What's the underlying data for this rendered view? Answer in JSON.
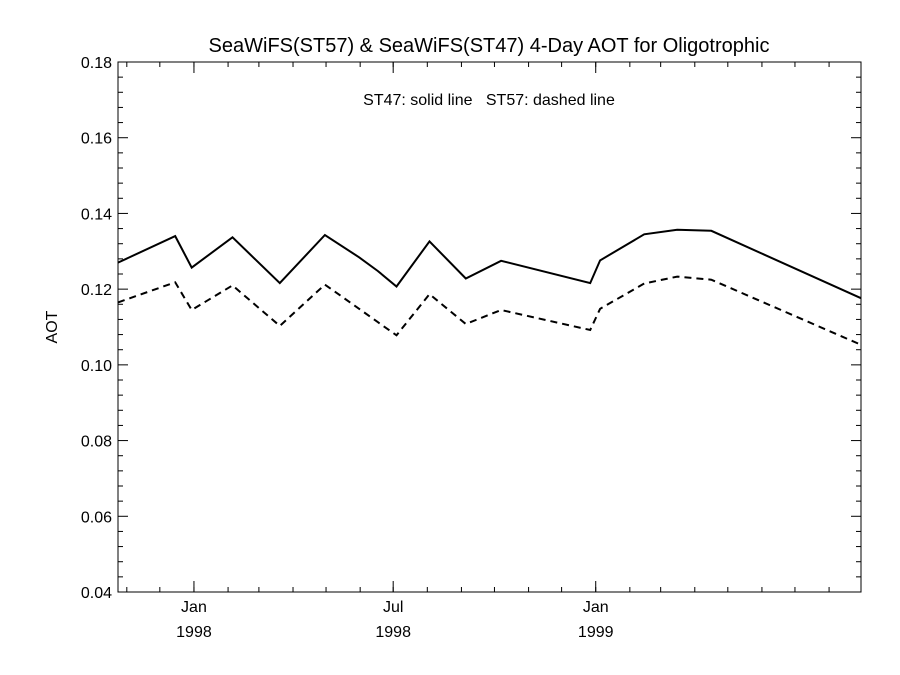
{
  "chart_data": {
    "type": "line",
    "title": "SeaWiFS(ST57) & SeaWiFS(ST47) 4-Day AOT for Oligotrophic",
    "annotation": "ST47: solid line   ST57: dashed line",
    "xlabel": "",
    "ylabel": "AOT",
    "xlim": [
      "1997-10-24",
      "1999-08-30"
    ],
    "ylim": [
      0.04,
      0.18
    ],
    "yticks": [
      0.04,
      0.06,
      0.08,
      0.1,
      0.12,
      0.14,
      0.16,
      0.18
    ],
    "ytick_labels": [
      "0.04",
      "0.06",
      "0.08",
      "0.10",
      "0.12",
      "0.14",
      "0.16",
      "0.18"
    ],
    "xticks": [
      {
        "date": "1998-01-01",
        "line1": "Jan",
        "line2": "1998"
      },
      {
        "date": "1998-07-01",
        "line1": "Jul",
        "line2": "1998"
      },
      {
        "date": "1999-01-01",
        "line1": "Jan",
        "line2": "1999"
      }
    ],
    "grid": false,
    "series": [
      {
        "name": "ST47",
        "style": "solid",
        "color": "#000000",
        "x": [
          "1997-10-24",
          "1997-12-15",
          "1997-12-30",
          "1998-02-05",
          "1998-03-20",
          "1998-04-30",
          "1998-05-31",
          "1998-06-17",
          "1998-07-04",
          "1998-08-03",
          "1998-09-05",
          "1998-10-07",
          "1998-12-27",
          "1999-01-05",
          "1999-02-14",
          "1999-03-16",
          "1999-04-16",
          "1999-08-30"
        ],
        "y": [
          0.127,
          0.134,
          0.1257,
          0.1337,
          0.1216,
          0.1343,
          0.1284,
          0.1248,
          0.1207,
          0.1326,
          0.1228,
          0.1275,
          0.1216,
          0.1276,
          0.1345,
          0.1357,
          0.1354,
          0.1176
        ]
      },
      {
        "name": "ST57",
        "style": "dashed",
        "color": "#000000",
        "x": [
          "1997-10-24",
          "1997-12-15",
          "1997-12-30",
          "1998-02-05",
          "1998-03-20",
          "1998-04-30",
          "1998-05-31",
          "1998-06-17",
          "1998-07-04",
          "1998-08-03",
          "1998-09-05",
          "1998-10-07",
          "1998-12-27",
          "1999-01-05",
          "1999-02-14",
          "1999-03-16",
          "1999-04-16",
          "1999-08-30"
        ],
        "y": [
          0.1165,
          0.1218,
          0.1145,
          0.121,
          0.1103,
          0.1212,
          0.1148,
          0.1113,
          0.1078,
          0.1187,
          0.1108,
          0.1145,
          0.1092,
          0.1148,
          0.1215,
          0.1233,
          0.1225,
          0.1053
        ]
      }
    ]
  }
}
